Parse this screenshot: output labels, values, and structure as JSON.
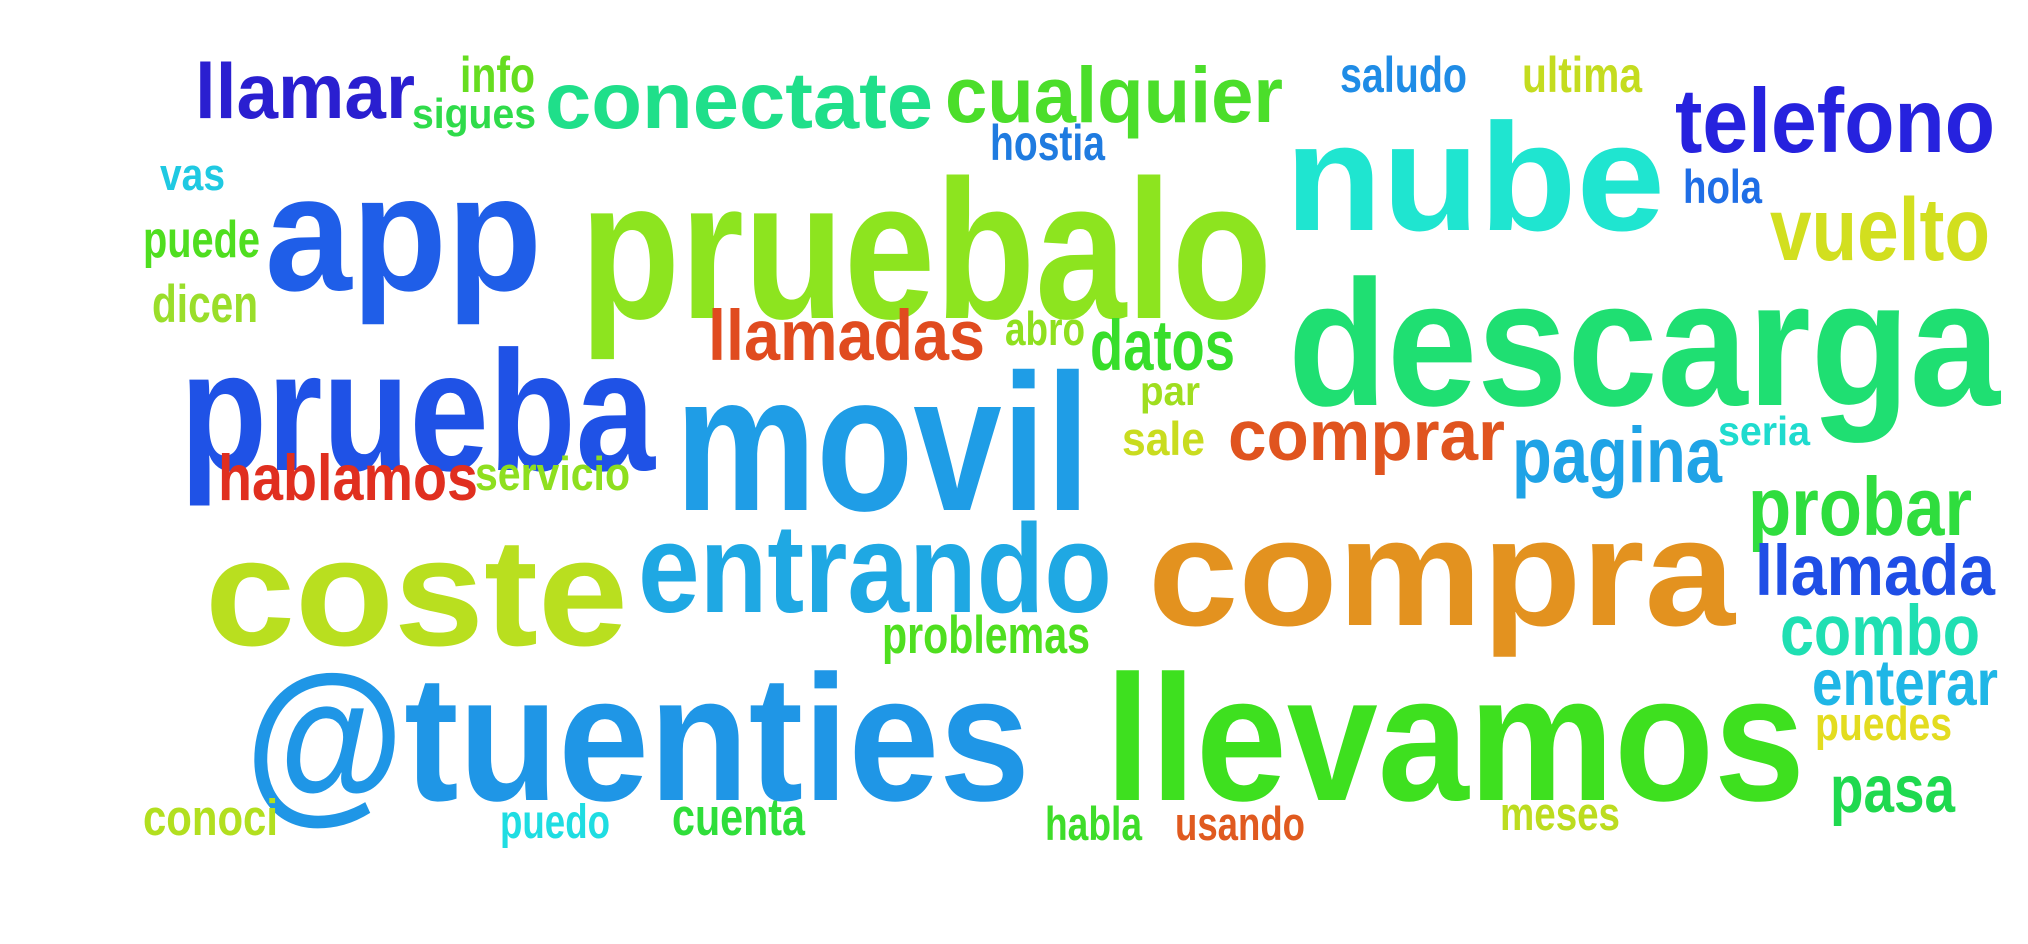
{
  "words": [
    {
      "text": "llamar",
      "color": "#2a1fd0"
    },
    {
      "text": "info",
      "color": "#66dd1f"
    },
    {
      "text": "sigues",
      "color": "#2fdb4a"
    },
    {
      "text": "conectate",
      "color": "#1fdf8a"
    },
    {
      "text": "cualquier",
      "color": "#4bde2a"
    },
    {
      "text": "saludo",
      "color": "#1f8ce6"
    },
    {
      "text": "ultima",
      "color": "#c4dc1f"
    },
    {
      "text": "telefono",
      "color": "#2622de"
    },
    {
      "text": "nube",
      "color": "#1fe5d0"
    },
    {
      "text": "hostia",
      "color": "#1f7be0"
    },
    {
      "text": "app",
      "color": "#1f5ee8"
    },
    {
      "text": "pruebalo",
      "color": "#8de41f"
    },
    {
      "text": "vas",
      "color": "#1fc9e2"
    },
    {
      "text": "puede",
      "color": "#4fde1f"
    },
    {
      "text": "hola",
      "color": "#1f6ee6"
    },
    {
      "text": "vuelto",
      "color": "#d2df1f"
    },
    {
      "text": "descarga",
      "color": "#1fdf72"
    },
    {
      "text": "dicen",
      "color": "#9ade2a"
    },
    {
      "text": "llamadas",
      "color": "#e04b1f"
    },
    {
      "text": "abro",
      "color": "#8fe01f"
    },
    {
      "text": "datos",
      "color": "#37de2a"
    },
    {
      "text": "prueba",
      "color": "#1f52e6"
    },
    {
      "text": "movil",
      "color": "#1f9de6"
    },
    {
      "text": "par",
      "color": "#9fde1f"
    },
    {
      "text": "sale",
      "color": "#c9dc1f"
    },
    {
      "text": "comprar",
      "color": "#e0541f"
    },
    {
      "text": "pagina",
      "color": "#1fa3e6"
    },
    {
      "text": "seria",
      "color": "#1fdbce"
    },
    {
      "text": "hablamos",
      "color": "#e02f1f"
    },
    {
      "text": "servicio",
      "color": "#8edf1f"
    },
    {
      "text": "probar",
      "color": "#2fdd3e"
    },
    {
      "text": "coste",
      "color": "#b9df1f"
    },
    {
      "text": "entrando",
      "color": "#1fa8e3"
    },
    {
      "text": "compra",
      "color": "#e3921f"
    },
    {
      "text": "llamada",
      "color": "#1f4ee6"
    },
    {
      "text": "combo",
      "color": "#1fdfb2"
    },
    {
      "text": "problemas",
      "color": "#4fdf1f"
    },
    {
      "text": "@tuenties",
      "color": "#1f96e6"
    },
    {
      "text": "llevamos",
      "color": "#3ee01f"
    },
    {
      "text": "enterar",
      "color": "#1fb6e6"
    },
    {
      "text": "puedes",
      "color": "#e3dc1f"
    },
    {
      "text": "pasa",
      "color": "#1fd94f"
    },
    {
      "text": "conoci",
      "color": "#b2df1f"
    },
    {
      "text": "puedo",
      "color": "#1fdde2"
    },
    {
      "text": "cuenta",
      "color": "#2fde3a"
    },
    {
      "text": "habla",
      "color": "#3edd2a"
    },
    {
      "text": "usando",
      "color": "#e05a1f"
    },
    {
      "text": "meses",
      "color": "#bcdc1f"
    }
  ]
}
